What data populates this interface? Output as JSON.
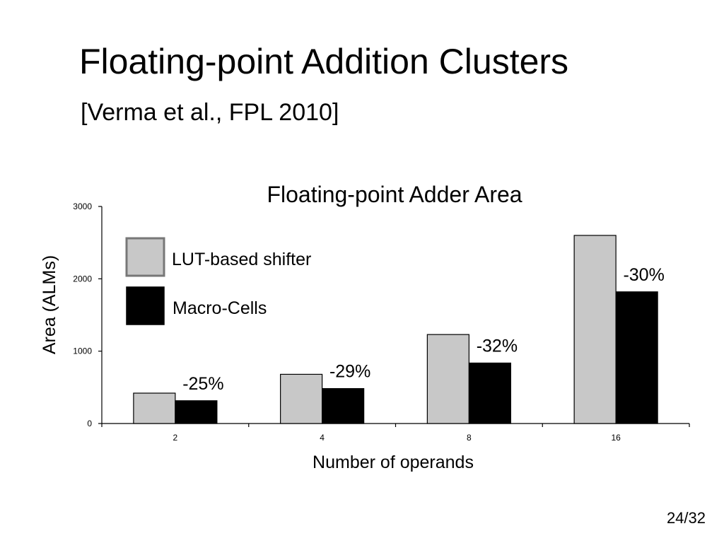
{
  "slide": {
    "title": "Floating-point Addition Clusters",
    "subtitle": "[Verma et al., FPL 2010]",
    "page_number": "24/32"
  },
  "chart_data": {
    "type": "bar",
    "title": "Floating-point Adder Area",
    "xlabel": "Number of operands",
    "ylabel": "Area (ALMs)",
    "categories": [
      "2",
      "4",
      "8",
      "16"
    ],
    "ylim": [
      0,
      3000
    ],
    "yticks": [
      "0",
      "1000",
      "2000",
      "3000"
    ],
    "grid": false,
    "legend_placement": "top-left",
    "series": [
      {
        "name": "LUT-based shifter",
        "color": "#c8c8c8",
        "values": [
          420,
          680,
          1230,
          2600
        ]
      },
      {
        "name": "Macro-Cells",
        "color": "#000000",
        "values": [
          315,
          483,
          836,
          1820
        ]
      }
    ],
    "annotations": [
      "-25%",
      "-29%",
      "-32%",
      "-30%"
    ]
  }
}
